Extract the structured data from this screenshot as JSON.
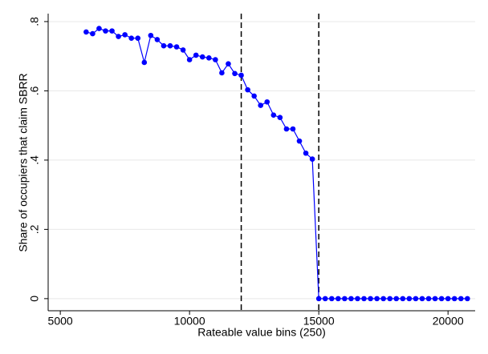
{
  "chart_data": {
    "type": "line",
    "xlabel": "Rateable value bins (250)",
    "ylabel": "Share of occupiers that claim SBRR",
    "x": [
      6000,
      6250,
      6500,
      6750,
      7000,
      7250,
      7500,
      7750,
      8000,
      8250,
      8500,
      8750,
      9000,
      9250,
      9500,
      9750,
      10000,
      10250,
      10500,
      10750,
      11000,
      11250,
      11500,
      11750,
      12000,
      12250,
      12500,
      12750,
      13000,
      13250,
      13500,
      13750,
      14000,
      14250,
      14500,
      14750,
      15000,
      15250,
      15500,
      15750,
      16000,
      16250,
      16500,
      16750,
      17000,
      17250,
      17500,
      17750,
      18000,
      18250,
      18500,
      18750,
      19000,
      19250,
      19500,
      19750,
      20000,
      20250,
      20500,
      20750
    ],
    "values": [
      0.77,
      0.765,
      0.78,
      0.773,
      0.773,
      0.757,
      0.762,
      0.752,
      0.752,
      0.682,
      0.76,
      0.748,
      0.73,
      0.73,
      0.727,
      0.718,
      0.69,
      0.703,
      0.698,
      0.695,
      0.69,
      0.652,
      0.678,
      0.65,
      0.645,
      0.603,
      0.585,
      0.558,
      0.568,
      0.53,
      0.523,
      0.49,
      0.49,
      0.455,
      0.42,
      0.403,
      0,
      0,
      0,
      0,
      0,
      0,
      0,
      0,
      0,
      0,
      0,
      0,
      0,
      0,
      0,
      0,
      0,
      0,
      0,
      0,
      0,
      0,
      0,
      0
    ],
    "color": "#0000ff",
    "xlim": [
      4530,
      21050
    ],
    "ylim": [
      -0.035,
      0.823
    ],
    "xticks": [
      5000,
      10000,
      15000,
      20000
    ],
    "yticks": [
      0,
      {
        "value": 0.2,
        "label": ".2"
      },
      {
        "value": 0.4,
        "label": ".4"
      },
      {
        "value": 0.6,
        "label": ".6"
      },
      {
        "value": 0.8,
        "label": ".8"
      }
    ],
    "vlines": [
      12000,
      15000
    ],
    "grid": true
  }
}
